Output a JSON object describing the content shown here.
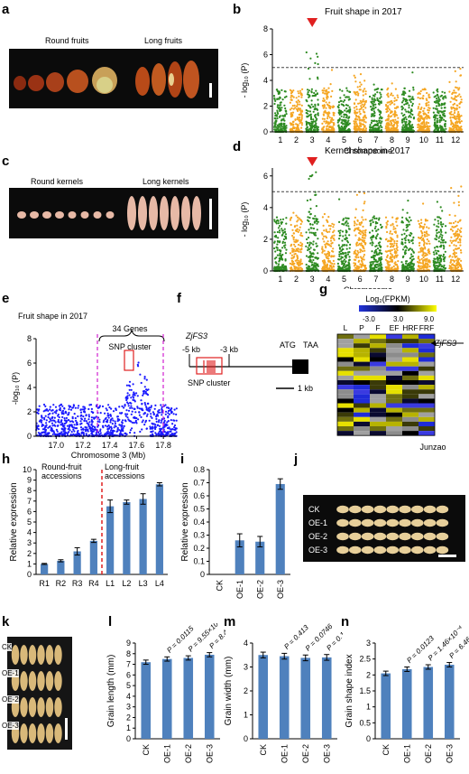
{
  "panels": {
    "a": {
      "letter": "a",
      "round_label": "Round fruits",
      "long_label": "Long fruits"
    },
    "b": {
      "letter": "b",
      "title": "Fruit shape in 2017",
      "xlabel": "Chromosome",
      "ylabel": "- log₁₀ (P)",
      "yticks": [
        "0",
        "2",
        "4",
        "6",
        "8"
      ],
      "xticks": [
        "1",
        "2",
        "3",
        "4",
        "5",
        "6",
        "7",
        "8",
        "9",
        "10",
        "11",
        "12"
      ]
    },
    "c": {
      "letter": "c",
      "round_label": "Round kernels",
      "long_label": "Long kernels"
    },
    "d": {
      "letter": "d",
      "title": "Kernel shape in 2017",
      "xlabel": "Chromosome",
      "ylabel": "- log₁₀ (P)",
      "yticks": [
        "0",
        "2",
        "4",
        "6"
      ],
      "xticks": [
        "1",
        "2",
        "3",
        "4",
        "5",
        "6",
        "7",
        "8",
        "9",
        "10",
        "11",
        "12"
      ]
    },
    "e": {
      "letter": "e",
      "title": "Fruit shape in 2017",
      "genes_label": "34 Genes",
      "cluster_label": "SNP cluster",
      "ylabel": "-log₁₀ (P)",
      "xlabel": "Chromosome 3 (Mb)",
      "yticks": [
        "0",
        "2",
        "4",
        "6",
        "8"
      ],
      "xticks": [
        "17.0",
        "17.2",
        "17.4",
        "17.6",
        "17.8"
      ]
    },
    "f": {
      "letter": "f",
      "gene": "ZjFS3",
      "left_kb": "-5 kb",
      "right_kb": "-3 kb",
      "atg": "ATG",
      "taa": "TAA",
      "cluster_label": "SNP cluster",
      "scale": "1 kb"
    },
    "g": {
      "letter": "g",
      "legend_title": "Log₂(FPKM)",
      "legend_min": "-3.0",
      "legend_mid": "3.0",
      "legend_max": "9.0",
      "columns": [
        "L",
        "P",
        "F",
        "EF",
        "HRF",
        "FRF"
      ],
      "gene_label": "ZjFS3",
      "footer": "Junzao"
    },
    "h": {
      "letter": "h",
      "ylabel": "Relative expression",
      "left_group": "Round-fruit\naccessions",
      "right_group": "Long-fruit\naccessions"
    },
    "i": {
      "letter": "i",
      "ylabel": "Relative expression"
    },
    "j": {
      "letter": "j",
      "rows": [
        "CK",
        "OE-1",
        "OE-2",
        "OE-3"
      ]
    },
    "k": {
      "letter": "k",
      "rows": [
        "CK",
        "OE-1",
        "OE-2",
        "OE-3"
      ]
    },
    "l": {
      "letter": "l",
      "ylabel": "Grain length (mm)",
      "pvalues": [
        "P = 0.0115",
        "P = 9.55×10⁻⁴",
        "P = 8.41×10⁻⁶"
      ]
    },
    "m": {
      "letter": "m",
      "ylabel": "Grain width (mm)",
      "pvalues": [
        "P = 0.413",
        "P = 0.0746",
        "P = 0.176"
      ]
    },
    "n": {
      "letter": "n",
      "ylabel": "Grain shape index",
      "pvalues": [
        "P = 0.0123",
        "P = 1.46×10⁻⁴",
        "P = 6.46×10⁻⁵"
      ]
    }
  },
  "colors": {
    "bar": "#4f81bd",
    "green": "#2e8b22",
    "orange": "#f5a623",
    "blue_dots": "#1a1aff",
    "red": "#e02020",
    "magenta": "#d020d0"
  },
  "chart_data": [
    {
      "id": "h",
      "type": "bar",
      "categories": [
        "R1",
        "R2",
        "R3",
        "R4",
        "L1",
        "L2",
        "L3",
        "L4"
      ],
      "values": [
        1.0,
        1.3,
        2.2,
        3.2,
        6.5,
        6.9,
        7.2,
        8.6
      ],
      "errors": [
        0.05,
        0.1,
        0.35,
        0.15,
        0.6,
        0.2,
        0.5,
        0.15
      ],
      "ylim": [
        0,
        10
      ],
      "yticks": [
        0,
        1,
        2,
        3,
        4,
        5,
        6,
        7,
        8,
        9,
        10
      ]
    },
    {
      "id": "i",
      "type": "bar",
      "categories": [
        "CK",
        "OE-1",
        "OE-2",
        "OE-3"
      ],
      "values": [
        0.0,
        0.26,
        0.25,
        0.69
      ],
      "errors": [
        0.0,
        0.05,
        0.04,
        0.04
      ],
      "ylim": [
        0,
        0.8
      ],
      "yticks": [
        0,
        0.1,
        0.2,
        0.3,
        0.4,
        0.5,
        0.6,
        0.7,
        0.8
      ]
    },
    {
      "id": "l",
      "type": "bar",
      "categories": [
        "CK",
        "OE-1",
        "OE-2",
        "OE-3"
      ],
      "values": [
        7.2,
        7.5,
        7.6,
        7.9
      ],
      "errors": [
        0.2,
        0.2,
        0.2,
        0.2
      ],
      "ylim": [
        0,
        9
      ],
      "yticks": [
        0,
        1,
        2,
        3,
        4,
        5,
        6,
        7,
        8,
        9
      ]
    },
    {
      "id": "m",
      "type": "bar",
      "categories": [
        "CK",
        "OE-1",
        "OE-2",
        "OE-3"
      ],
      "values": [
        3.5,
        3.45,
        3.38,
        3.4
      ],
      "errors": [
        0.12,
        0.12,
        0.12,
        0.12
      ],
      "ylim": [
        0,
        4
      ],
      "yticks": [
        0,
        1,
        2,
        3,
        4
      ]
    },
    {
      "id": "n",
      "type": "bar",
      "categories": [
        "CK",
        "OE-1",
        "OE-2",
        "OE-3"
      ],
      "values": [
        2.05,
        2.18,
        2.25,
        2.32
      ],
      "errors": [
        0.07,
        0.07,
        0.07,
        0.07
      ],
      "ylim": [
        0,
        3
      ],
      "yticks": [
        0,
        0.5,
        1,
        1.5,
        2,
        2.5,
        3
      ]
    }
  ]
}
